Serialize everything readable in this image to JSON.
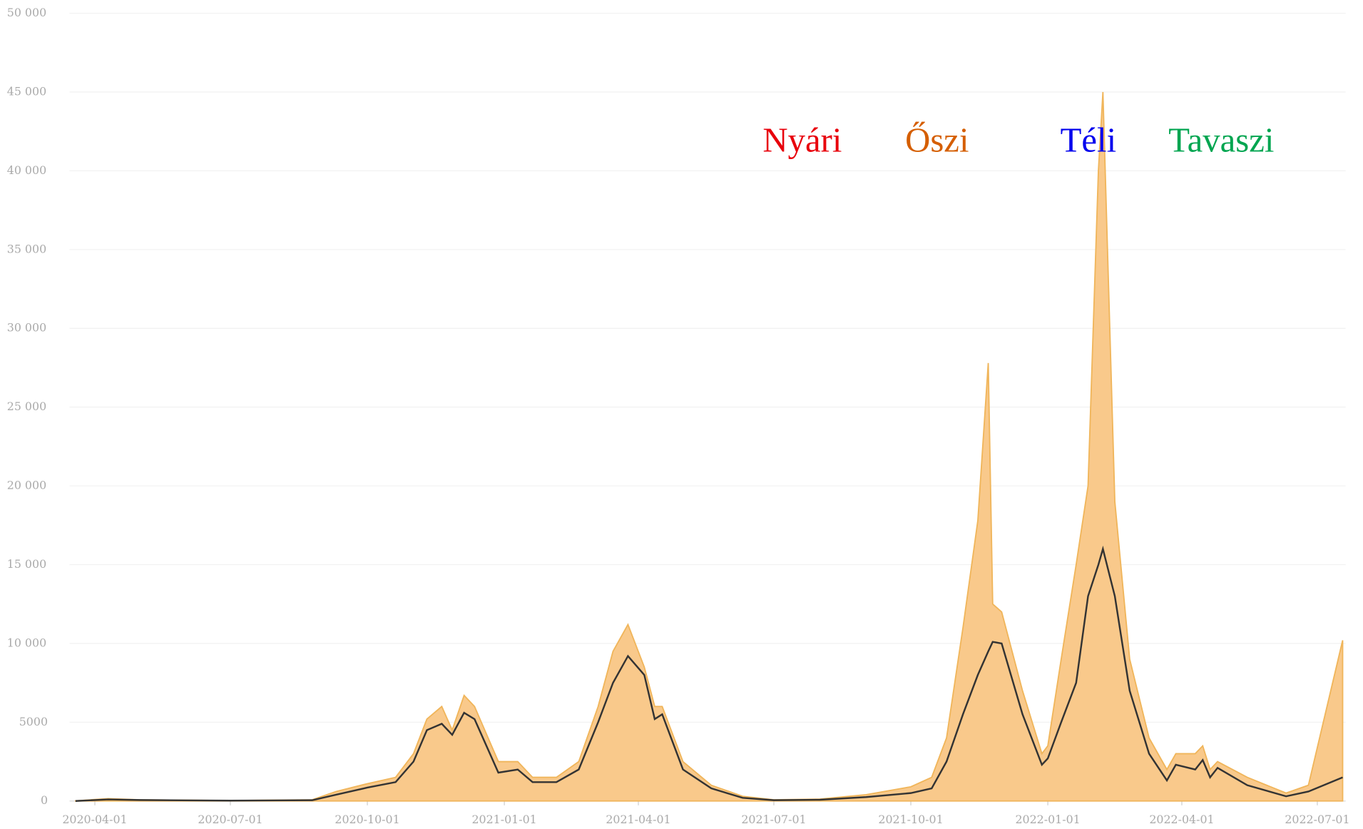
{
  "chart_data": {
    "type": "area",
    "x": [
      "2020-03-19",
      "2020-04-10",
      "2020-05-01",
      "2020-07-01",
      "2020-08-25",
      "2020-09-10",
      "2020-10-01",
      "2020-10-20",
      "2020-11-01",
      "2020-11-10",
      "2020-11-20",
      "2020-11-27",
      "2020-12-05",
      "2020-12-12",
      "2020-12-28",
      "2021-01-10",
      "2021-01-20",
      "2021-02-05",
      "2021-02-20",
      "2021-03-05",
      "2021-03-15",
      "2021-03-25",
      "2021-04-05",
      "2021-04-12",
      "2021-04-17",
      "2021-05-01",
      "2021-05-20",
      "2021-06-10",
      "2021-07-01",
      "2021-08-01",
      "2021-09-01",
      "2021-10-01",
      "2021-10-15",
      "2021-10-25",
      "2021-11-05",
      "2021-11-15",
      "2021-11-22",
      "2021-11-25",
      "2021-12-01",
      "2021-12-15",
      "2021-12-28",
      "2022-01-01",
      "2022-01-10",
      "2022-01-20",
      "2022-01-28",
      "2022-02-04",
      "2022-02-07",
      "2022-02-15",
      "2022-02-25",
      "2022-03-10",
      "2022-03-22",
      "2022-03-28",
      "2022-04-10",
      "2022-04-15",
      "2022-04-20",
      "2022-04-25",
      "2022-05-15",
      "2022-06-10",
      "2022-06-25",
      "2022-07-18"
    ],
    "series": [
      {
        "color": "#f9c98b",
        "stroke": "#f0b55a",
        "values": [
          10,
          150,
          80,
          30,
          80,
          600,
          1100,
          1500,
          3000,
          5200,
          6000,
          4500,
          6700,
          6000,
          2500,
          2500,
          1500,
          1500,
          2500,
          6000,
          9500,
          11200,
          8500,
          6000,
          6000,
          2500,
          1000,
          300,
          80,
          120,
          400,
          900,
          1500,
          4000,
          11000,
          17800,
          27800,
          12500,
          12000,
          7000,
          3000,
          3500,
          9000,
          15000,
          20000,
          40000,
          45000,
          19000,
          9000,
          4000,
          2000,
          3000,
          3000,
          3500,
          2000,
          2500,
          1500,
          500,
          1000,
          10200
        ]
      },
      {
        "color": "#333333",
        "values": [
          0,
          100,
          60,
          20,
          50,
          400,
          850,
          1200,
          2500,
          4500,
          4900,
          4200,
          5600,
          5200,
          1800,
          2000,
          1200,
          1200,
          2000,
          5000,
          7500,
          9200,
          8000,
          5200,
          5500,
          2000,
          800,
          200,
          50,
          80,
          250,
          500,
          800,
          2500,
          5500,
          8000,
          9500,
          10100,
          10000,
          5500,
          2300,
          2700,
          5000,
          7500,
          13000,
          15000,
          16000,
          13000,
          7000,
          3000,
          1300,
          2300,
          2000,
          2600,
          1500,
          2100,
          1000,
          300,
          600,
          1500
        ]
      }
    ],
    "xlim": [
      "2020-03-15",
      "2022-07-20"
    ],
    "xticks": [
      "2020-04-01",
      "2020-07-01",
      "2020-10-01",
      "2021-01-01",
      "2021-04-01",
      "2021-07-01",
      "2021-10-01",
      "2022-01-01",
      "2022-04-01",
      "2022-07-01"
    ],
    "ylim": [
      0,
      50000
    ],
    "yticks": [
      0,
      5000,
      {
        "value": 10000,
        "label": "10 000"
      },
      {
        "value": 15000,
        "label": "15 000"
      },
      {
        "value": 20000,
        "label": "20 000"
      },
      {
        "value": 25000,
        "label": "25 000"
      },
      {
        "value": 30000,
        "label": "30 000"
      },
      {
        "value": 35000,
        "label": "35 000"
      },
      {
        "value": 40000,
        "label": "40 000"
      },
      {
        "value": 45000,
        "label": "45 000"
      },
      {
        "value": 50000,
        "label": "50 000"
      }
    ],
    "grid": true,
    "annotations": [
      {
        "text": "Nyári",
        "color": "#e8000b"
      },
      {
        "text": "Őszi",
        "color": "#d55e00"
      },
      {
        "text": "Téli",
        "color": "#0000ee"
      },
      {
        "text": "Tavaszi",
        "color": "#00a550"
      }
    ]
  }
}
